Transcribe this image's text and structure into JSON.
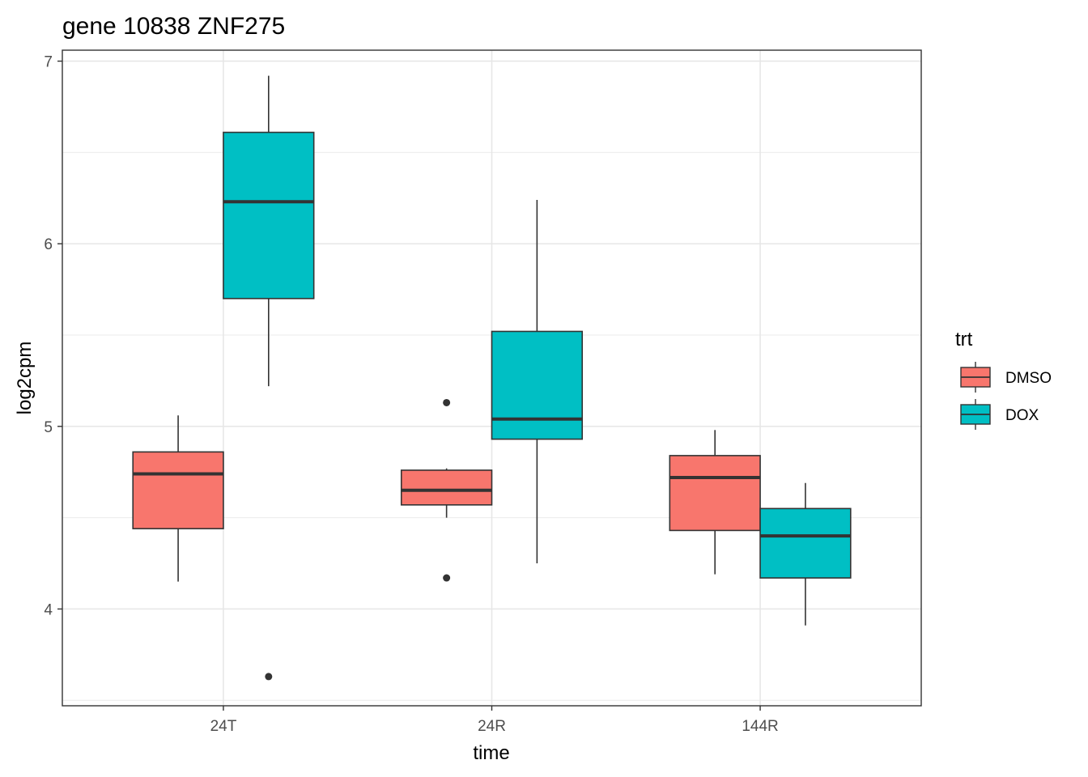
{
  "chart_data": {
    "type": "boxplot",
    "title": "gene 10838 ZNF275",
    "xlabel": "time",
    "ylabel": "log2cpm",
    "categories": [
      "24T",
      "24R",
      "144R"
    ],
    "ylim": [
      3.47,
      7.06
    ],
    "yticks": [
      4,
      5,
      6,
      7
    ],
    "grid": true,
    "legend": {
      "title": "trt",
      "position": "right"
    },
    "series": [
      {
        "name": "DMSO",
        "color": "#F8766D",
        "boxes": [
          {
            "category": "24T",
            "min": 4.15,
            "q1": 4.44,
            "median": 4.74,
            "q3": 4.86,
            "max": 5.06,
            "outliers": []
          },
          {
            "category": "24R",
            "min": 4.5,
            "q1": 4.57,
            "median": 4.65,
            "q3": 4.76,
            "max": 4.77,
            "outliers": [
              4.17,
              5.13
            ]
          },
          {
            "category": "144R",
            "min": 4.19,
            "q1": 4.43,
            "median": 4.72,
            "q3": 4.84,
            "max": 4.98,
            "outliers": []
          }
        ]
      },
      {
        "name": "DOX",
        "color": "#00BFC4",
        "boxes": [
          {
            "category": "24T",
            "min": 5.22,
            "q1": 5.7,
            "median": 6.23,
            "q3": 6.61,
            "max": 6.92,
            "outliers": [
              3.63
            ]
          },
          {
            "category": "24R",
            "min": 4.25,
            "q1": 4.93,
            "median": 5.04,
            "q3": 5.52,
            "max": 6.24,
            "outliers": []
          },
          {
            "category": "144R",
            "min": 3.91,
            "q1": 4.17,
            "median": 4.4,
            "q3": 4.55,
            "max": 4.69,
            "outliers": []
          }
        ]
      }
    ]
  }
}
